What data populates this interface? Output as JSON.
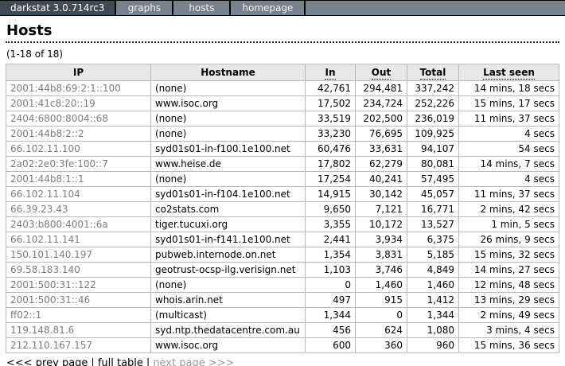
{
  "colors": {
    "navbar_bg": "#76828e",
    "navbar_title_bg": "#3e4a55",
    "navbar_text": "#ffffff",
    "table_header_bg": "#e8e8e8",
    "table_border": "#b9b9b9",
    "ip_text": "#7d7d7d",
    "disabled_link": "#999999"
  },
  "navbar": {
    "title": "darkstat 3.0.714rc3",
    "items": {
      "graphs": "graphs",
      "hosts": "hosts",
      "homepage": "homepage"
    }
  },
  "page": {
    "heading": "Hosts",
    "range_text": "(1-18 of 18)"
  },
  "table": {
    "headers": {
      "ip": "IP",
      "hostname": "Hostname",
      "in": "In",
      "out": "Out",
      "total": "Total",
      "last_seen": "Last seen"
    },
    "rows": [
      {
        "ip": "2001:44b8:69:2:1::100",
        "hostname": "(none)",
        "in": "42,761",
        "out": "294,481",
        "total": "337,242",
        "last_seen": "14 mins, 18 secs"
      },
      {
        "ip": "2001:41c8:20::19",
        "hostname": "www.isoc.org",
        "in": "17,502",
        "out": "234,724",
        "total": "252,226",
        "last_seen": "15 mins, 17 secs"
      },
      {
        "ip": "2404:6800:8004::68",
        "hostname": "(none)",
        "in": "33,519",
        "out": "202,500",
        "total": "236,019",
        "last_seen": "11 mins, 37 secs"
      },
      {
        "ip": "2001:44b8:2::2",
        "hostname": "(none)",
        "in": "33,230",
        "out": "76,695",
        "total": "109,925",
        "last_seen": "4 secs"
      },
      {
        "ip": "66.102.11.100",
        "hostname": "syd01s01-in-f100.1e100.net",
        "in": "60,476",
        "out": "33,631",
        "total": "94,107",
        "last_seen": "54 secs"
      },
      {
        "ip": "2a02:2e0:3fe:100::7",
        "hostname": "www.heise.de",
        "in": "17,802",
        "out": "62,279",
        "total": "80,081",
        "last_seen": "14 mins, 7 secs"
      },
      {
        "ip": "2001:44b8:1::1",
        "hostname": "(none)",
        "in": "17,254",
        "out": "40,241",
        "total": "57,495",
        "last_seen": "4 secs"
      },
      {
        "ip": "66.102.11.104",
        "hostname": "syd01s01-in-f104.1e100.net",
        "in": "14,915",
        "out": "30,142",
        "total": "45,057",
        "last_seen": "11 mins, 37 secs"
      },
      {
        "ip": "66.39.23.43",
        "hostname": "co2stats.com",
        "in": "9,650",
        "out": "7,121",
        "total": "16,771",
        "last_seen": "2 mins, 42 secs"
      },
      {
        "ip": "2403:b800:4001::6a",
        "hostname": "tiger.tucuxi.org",
        "in": "3,355",
        "out": "10,172",
        "total": "13,527",
        "last_seen": "1 min, 5 secs"
      },
      {
        "ip": "66.102.11.141",
        "hostname": "syd01s01-in-f141.1e100.net",
        "in": "2,441",
        "out": "3,934",
        "total": "6,375",
        "last_seen": "26 mins, 9 secs"
      },
      {
        "ip": "150.101.140.197",
        "hostname": "pubweb.internode.on.net",
        "in": "1,354",
        "out": "3,831",
        "total": "5,185",
        "last_seen": "15 mins, 32 secs"
      },
      {
        "ip": "69.58.183.140",
        "hostname": "geotrust-ocsp-ilg.verisign.net",
        "in": "1,103",
        "out": "3,746",
        "total": "4,849",
        "last_seen": "14 mins, 27 secs"
      },
      {
        "ip": "2001:500:31::122",
        "hostname": "(none)",
        "in": "0",
        "out": "1,460",
        "total": "1,460",
        "last_seen": "12 mins, 48 secs"
      },
      {
        "ip": "2001:500:31::46",
        "hostname": "whois.arin.net",
        "in": "497",
        "out": "915",
        "total": "1,412",
        "last_seen": "13 mins, 29 secs"
      },
      {
        "ip": "ff02::1",
        "hostname": "(multicast)",
        "in": "1,344",
        "out": "0",
        "total": "1,344",
        "last_seen": "2 mins, 49 secs"
      },
      {
        "ip": "119.148.81.6",
        "hostname": "syd.ntp.thedatacentre.com.au",
        "in": "456",
        "out": "624",
        "total": "1,080",
        "last_seen": "3 mins, 4 secs"
      },
      {
        "ip": "212.110.167.157",
        "hostname": "www.isoc.org",
        "in": "600",
        "out": "360",
        "total": "960",
        "last_seen": "15 mins, 36 secs"
      }
    ]
  },
  "pager": {
    "prev": "<<< prev page",
    "separator": "|",
    "full_table": "full table",
    "next": "next page >>>"
  }
}
